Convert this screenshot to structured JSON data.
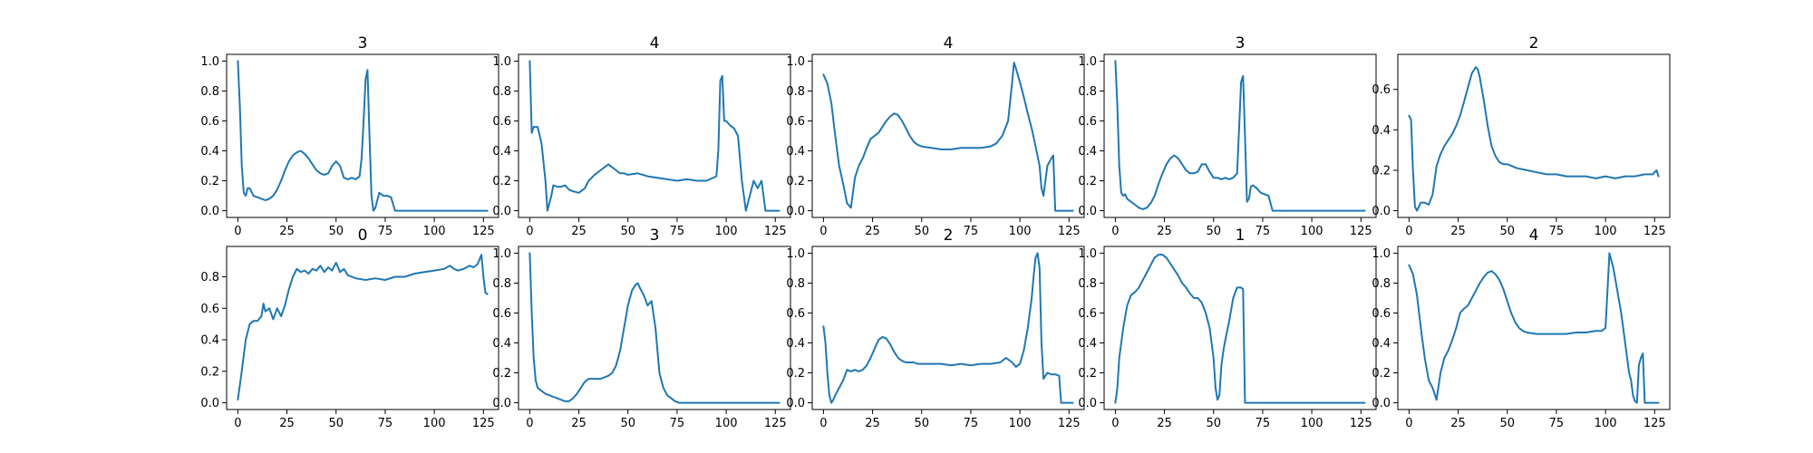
{
  "chart_data": [
    {
      "type": "line",
      "title": "3",
      "xlim": [
        0,
        127
      ],
      "ylim": [
        0,
        1
      ],
      "xticks": [
        0,
        25,
        50,
        75,
        100,
        125
      ],
      "yticks": [
        0.0,
        0.2,
        0.4,
        0.6,
        0.8,
        1.0
      ],
      "x": [
        0,
        1,
        2,
        3,
        4,
        5,
        6,
        8,
        10,
        12,
        14,
        16,
        18,
        20,
        22,
        24,
        26,
        28,
        30,
        32,
        34,
        36,
        38,
        40,
        42,
        44,
        46,
        48,
        50,
        52,
        54,
        56,
        58,
        60,
        62,
        63,
        64,
        65,
        66,
        67,
        68,
        69,
        70,
        72,
        74,
        76,
        78,
        80,
        85,
        100,
        127
      ],
      "y": [
        1.0,
        0.7,
        0.3,
        0.12,
        0.1,
        0.15,
        0.15,
        0.1,
        0.09,
        0.08,
        0.07,
        0.08,
        0.1,
        0.14,
        0.2,
        0.27,
        0.33,
        0.37,
        0.39,
        0.4,
        0.38,
        0.35,
        0.31,
        0.27,
        0.25,
        0.24,
        0.25,
        0.3,
        0.33,
        0.3,
        0.22,
        0.21,
        0.22,
        0.21,
        0.23,
        0.35,
        0.6,
        0.88,
        0.94,
        0.5,
        0.1,
        0.0,
        0.02,
        0.12,
        0.1,
        0.1,
        0.09,
        0.0,
        0.0,
        0.0,
        0.0
      ]
    },
    {
      "type": "line",
      "title": "4",
      "xlim": [
        0,
        127
      ],
      "ylim": [
        0,
        1
      ],
      "xticks": [
        0,
        25,
        50,
        75,
        100,
        125
      ],
      "yticks": [
        0.0,
        0.2,
        0.4,
        0.6,
        0.8,
        1.0
      ],
      "x": [
        0,
        1,
        2,
        4,
        6,
        8,
        9,
        10,
        11,
        12,
        14,
        16,
        18,
        20,
        22,
        25,
        28,
        30,
        33,
        36,
        38,
        40,
        42,
        44,
        46,
        48,
        50,
        55,
        60,
        65,
        70,
        75,
        80,
        85,
        90,
        95,
        96,
        97,
        98,
        99,
        100,
        102,
        104,
        106,
        108,
        110,
        112,
        114,
        116,
        118,
        120,
        121,
        122,
        124,
        127
      ],
      "y": [
        1.0,
        0.52,
        0.56,
        0.56,
        0.45,
        0.2,
        0.0,
        0.05,
        0.1,
        0.17,
        0.16,
        0.16,
        0.17,
        0.14,
        0.13,
        0.12,
        0.15,
        0.2,
        0.24,
        0.27,
        0.29,
        0.31,
        0.29,
        0.27,
        0.25,
        0.25,
        0.24,
        0.25,
        0.23,
        0.22,
        0.21,
        0.2,
        0.21,
        0.2,
        0.2,
        0.23,
        0.4,
        0.87,
        0.9,
        0.6,
        0.6,
        0.57,
        0.55,
        0.5,
        0.2,
        0.0,
        0.1,
        0.2,
        0.15,
        0.2,
        0.0,
        0.0,
        0.0,
        0.0,
        0.0
      ]
    },
    {
      "type": "line",
      "title": "4",
      "xlim": [
        0,
        127
      ],
      "ylim": [
        0,
        1
      ],
      "xticks": [
        0,
        25,
        50,
        75,
        100,
        125
      ],
      "yticks": [
        0.0,
        0.2,
        0.4,
        0.6,
        0.8,
        1.0
      ],
      "x": [
        0,
        2,
        4,
        6,
        8,
        10,
        12,
        14,
        16,
        18,
        20,
        22,
        24,
        26,
        28,
        30,
        32,
        34,
        36,
        38,
        40,
        42,
        44,
        46,
        48,
        50,
        55,
        60,
        65,
        70,
        75,
        80,
        85,
        88,
        91,
        94,
        96,
        97,
        98,
        100,
        102,
        104,
        106,
        108,
        110,
        111,
        112,
        114,
        116,
        117,
        118,
        120,
        127
      ],
      "y": [
        0.91,
        0.85,
        0.72,
        0.5,
        0.3,
        0.18,
        0.05,
        0.02,
        0.22,
        0.3,
        0.35,
        0.42,
        0.48,
        0.5,
        0.52,
        0.56,
        0.6,
        0.63,
        0.65,
        0.64,
        0.6,
        0.55,
        0.5,
        0.46,
        0.44,
        0.43,
        0.42,
        0.41,
        0.41,
        0.42,
        0.42,
        0.42,
        0.43,
        0.45,
        0.5,
        0.6,
        0.85,
        0.99,
        0.95,
        0.86,
        0.76,
        0.65,
        0.55,
        0.43,
        0.3,
        0.15,
        0.1,
        0.3,
        0.35,
        0.37,
        0.0,
        0.0,
        0.0
      ]
    },
    {
      "type": "line",
      "title": "3",
      "xlim": [
        0,
        127
      ],
      "ylim": [
        0,
        1
      ],
      "xticks": [
        0,
        25,
        50,
        75,
        100,
        125
      ],
      "yticks": [
        0.0,
        0.2,
        0.4,
        0.6,
        0.8,
        1.0
      ],
      "x": [
        0,
        1,
        2,
        3,
        4,
        5,
        6,
        8,
        10,
        12,
        14,
        16,
        18,
        20,
        22,
        24,
        26,
        28,
        30,
        32,
        34,
        36,
        38,
        40,
        42,
        44,
        46,
        48,
        50,
        52,
        54,
        56,
        58,
        60,
        62,
        63,
        64,
        65,
        66,
        67,
        68,
        69,
        70,
        72,
        74,
        76,
        78,
        80,
        85,
        100,
        127
      ],
      "y": [
        1.0,
        0.7,
        0.3,
        0.12,
        0.1,
        0.11,
        0.08,
        0.06,
        0.04,
        0.02,
        0.01,
        0.02,
        0.05,
        0.1,
        0.18,
        0.25,
        0.31,
        0.35,
        0.37,
        0.35,
        0.31,
        0.27,
        0.25,
        0.25,
        0.26,
        0.31,
        0.31,
        0.26,
        0.22,
        0.22,
        0.21,
        0.22,
        0.21,
        0.22,
        0.25,
        0.55,
        0.86,
        0.9,
        0.5,
        0.06,
        0.08,
        0.16,
        0.17,
        0.15,
        0.12,
        0.11,
        0.1,
        0.0,
        0.0,
        0.0,
        0.0
      ]
    },
    {
      "type": "line",
      "title": "2",
      "xlim": [
        0,
        127
      ],
      "ylim": [
        0,
        0.74
      ],
      "xticks": [
        0,
        25,
        50,
        75,
        100,
        125
      ],
      "yticks": [
        0.0,
        0.2,
        0.4,
        0.6
      ],
      "x": [
        0,
        1,
        2,
        3,
        4,
        5,
        6,
        8,
        10,
        12,
        14,
        16,
        18,
        20,
        22,
        24,
        26,
        28,
        30,
        32,
        34,
        35,
        36,
        38,
        40,
        42,
        44,
        46,
        48,
        50,
        55,
        60,
        65,
        70,
        75,
        80,
        85,
        90,
        95,
        100,
        105,
        110,
        115,
        120,
        124,
        126,
        127
      ],
      "y": [
        0.47,
        0.45,
        0.2,
        0.02,
        0.0,
        0.02,
        0.04,
        0.04,
        0.03,
        0.08,
        0.22,
        0.28,
        0.32,
        0.35,
        0.38,
        0.42,
        0.47,
        0.54,
        0.61,
        0.68,
        0.71,
        0.7,
        0.66,
        0.55,
        0.42,
        0.32,
        0.27,
        0.24,
        0.23,
        0.23,
        0.21,
        0.2,
        0.19,
        0.18,
        0.18,
        0.17,
        0.17,
        0.17,
        0.16,
        0.17,
        0.16,
        0.17,
        0.17,
        0.18,
        0.18,
        0.2,
        0.17
      ]
    },
    {
      "type": "line",
      "title": "0",
      "xlim": [
        0,
        127
      ],
      "ylim": [
        0,
        0.95
      ],
      "xticks": [
        0,
        25,
        50,
        75,
        100,
        125
      ],
      "yticks": [
        0.0,
        0.2,
        0.4,
        0.6,
        0.8
      ],
      "x": [
        0,
        2,
        4,
        6,
        8,
        10,
        12,
        13,
        14,
        16,
        18,
        20,
        22,
        24,
        26,
        28,
        30,
        32,
        34,
        36,
        38,
        40,
        42,
        44,
        46,
        48,
        50,
        52,
        54,
        56,
        58,
        60,
        65,
        70,
        75,
        80,
        85,
        90,
        95,
        100,
        105,
        108,
        110,
        112,
        115,
        118,
        120,
        122,
        124,
        125,
        126,
        127
      ],
      "y": [
        0.02,
        0.2,
        0.4,
        0.5,
        0.52,
        0.52,
        0.55,
        0.63,
        0.58,
        0.6,
        0.53,
        0.6,
        0.55,
        0.62,
        0.72,
        0.8,
        0.85,
        0.83,
        0.84,
        0.82,
        0.85,
        0.84,
        0.87,
        0.83,
        0.86,
        0.84,
        0.89,
        0.83,
        0.85,
        0.81,
        0.8,
        0.79,
        0.78,
        0.79,
        0.78,
        0.8,
        0.8,
        0.82,
        0.83,
        0.84,
        0.85,
        0.87,
        0.85,
        0.84,
        0.85,
        0.87,
        0.86,
        0.88,
        0.94,
        0.8,
        0.7,
        0.69
      ]
    },
    {
      "type": "line",
      "title": "3",
      "xlim": [
        0,
        127
      ],
      "ylim": [
        0,
        1
      ],
      "xticks": [
        0,
        25,
        50,
        75,
        100,
        125
      ],
      "yticks": [
        0.0,
        0.2,
        0.4,
        0.6,
        0.8,
        1.0
      ],
      "x": [
        0,
        1,
        2,
        3,
        4,
        6,
        8,
        10,
        12,
        14,
        16,
        18,
        20,
        22,
        24,
        26,
        28,
        30,
        32,
        34,
        36,
        38,
        40,
        42,
        44,
        46,
        48,
        50,
        52,
        54,
        55,
        56,
        58,
        60,
        62,
        64,
        66,
        68,
        70,
        72,
        74,
        76,
        78,
        80,
        90,
        100,
        127
      ],
      "y": [
        1.0,
        0.6,
        0.3,
        0.15,
        0.1,
        0.08,
        0.06,
        0.05,
        0.04,
        0.03,
        0.02,
        0.01,
        0.01,
        0.03,
        0.06,
        0.1,
        0.14,
        0.16,
        0.16,
        0.16,
        0.16,
        0.17,
        0.18,
        0.2,
        0.25,
        0.35,
        0.5,
        0.65,
        0.75,
        0.79,
        0.8,
        0.77,
        0.72,
        0.65,
        0.68,
        0.5,
        0.2,
        0.1,
        0.05,
        0.03,
        0.01,
        0.0,
        0.0,
        0.0,
        0.0,
        0.0,
        0.0
      ]
    },
    {
      "type": "line",
      "title": "2",
      "xlim": [
        0,
        127
      ],
      "ylim": [
        0,
        1
      ],
      "xticks": [
        0,
        25,
        50,
        75,
        100,
        125
      ],
      "yticks": [
        0.0,
        0.2,
        0.4,
        0.6,
        0.8,
        1.0
      ],
      "x": [
        0,
        1,
        2,
        3,
        4,
        5,
        6,
        8,
        10,
        12,
        14,
        16,
        18,
        20,
        22,
        24,
        26,
        28,
        30,
        32,
        34,
        36,
        38,
        40,
        42,
        44,
        46,
        48,
        50,
        55,
        60,
        65,
        70,
        75,
        80,
        85,
        90,
        93,
        96,
        98,
        100,
        102,
        104,
        106,
        107,
        108,
        109,
        110,
        111,
        112,
        114,
        116,
        118,
        120,
        121,
        122,
        124,
        127
      ],
      "y": [
        0.51,
        0.4,
        0.2,
        0.05,
        0.0,
        0.02,
        0.05,
        0.1,
        0.15,
        0.22,
        0.21,
        0.22,
        0.21,
        0.22,
        0.25,
        0.3,
        0.36,
        0.42,
        0.44,
        0.43,
        0.39,
        0.34,
        0.3,
        0.28,
        0.27,
        0.27,
        0.27,
        0.26,
        0.26,
        0.26,
        0.26,
        0.25,
        0.26,
        0.25,
        0.26,
        0.26,
        0.27,
        0.3,
        0.27,
        0.24,
        0.26,
        0.35,
        0.5,
        0.7,
        0.85,
        0.97,
        1.0,
        0.9,
        0.4,
        0.16,
        0.2,
        0.19,
        0.19,
        0.18,
        0.0,
        0.0,
        0.0,
        0.0
      ]
    },
    {
      "type": "line",
      "title": "1",
      "xlim": [
        0,
        127
      ],
      "ylim": [
        0,
        1
      ],
      "xticks": [
        0,
        25,
        50,
        75,
        100,
        125
      ],
      "yticks": [
        0.0,
        0.2,
        0.4,
        0.6,
        0.8,
        1.0
      ],
      "x": [
        0,
        1,
        2,
        3,
        4,
        6,
        8,
        10,
        12,
        14,
        16,
        18,
        20,
        22,
        24,
        26,
        28,
        30,
        32,
        34,
        36,
        38,
        40,
        42,
        44,
        46,
        48,
        50,
        51,
        52,
        53,
        54,
        55,
        56,
        58,
        60,
        62,
        64,
        65,
        66,
        70,
        80,
        100,
        127
      ],
      "y": [
        0.0,
        0.1,
        0.3,
        0.4,
        0.5,
        0.65,
        0.72,
        0.74,
        0.77,
        0.82,
        0.87,
        0.92,
        0.97,
        0.99,
        0.99,
        0.97,
        0.93,
        0.89,
        0.85,
        0.8,
        0.77,
        0.73,
        0.7,
        0.7,
        0.67,
        0.6,
        0.5,
        0.3,
        0.1,
        0.02,
        0.05,
        0.25,
        0.35,
        0.42,
        0.55,
        0.7,
        0.77,
        0.77,
        0.76,
        0.0,
        0.0,
        0.0,
        0.0,
        0.0
      ]
    },
    {
      "type": "line",
      "title": "4",
      "xlim": [
        0,
        127
      ],
      "ylim": [
        0,
        1
      ],
      "xticks": [
        0,
        25,
        50,
        75,
        100,
        125
      ],
      "yticks": [
        0.0,
        0.2,
        0.4,
        0.6,
        0.8,
        1.0
      ],
      "x": [
        0,
        2,
        4,
        6,
        8,
        10,
        12,
        14,
        16,
        18,
        20,
        22,
        24,
        26,
        28,
        30,
        32,
        34,
        36,
        38,
        40,
        42,
        44,
        46,
        48,
        50,
        52,
        54,
        56,
        58,
        60,
        65,
        70,
        75,
        80,
        85,
        90,
        95,
        98,
        100,
        101,
        102,
        104,
        106,
        108,
        110,
        112,
        113,
        114,
        115,
        116,
        117,
        118,
        119,
        120,
        127
      ],
      "y": [
        0.92,
        0.86,
        0.72,
        0.5,
        0.3,
        0.15,
        0.1,
        0.02,
        0.2,
        0.3,
        0.35,
        0.42,
        0.5,
        0.6,
        0.63,
        0.65,
        0.7,
        0.75,
        0.8,
        0.84,
        0.87,
        0.88,
        0.86,
        0.82,
        0.76,
        0.68,
        0.6,
        0.54,
        0.5,
        0.48,
        0.47,
        0.46,
        0.46,
        0.46,
        0.46,
        0.47,
        0.47,
        0.48,
        0.48,
        0.5,
        0.75,
        1.0,
        0.9,
        0.75,
        0.6,
        0.4,
        0.2,
        0.15,
        0.05,
        0.01,
        0.0,
        0.25,
        0.3,
        0.33,
        0.0,
        0.0
      ]
    }
  ]
}
